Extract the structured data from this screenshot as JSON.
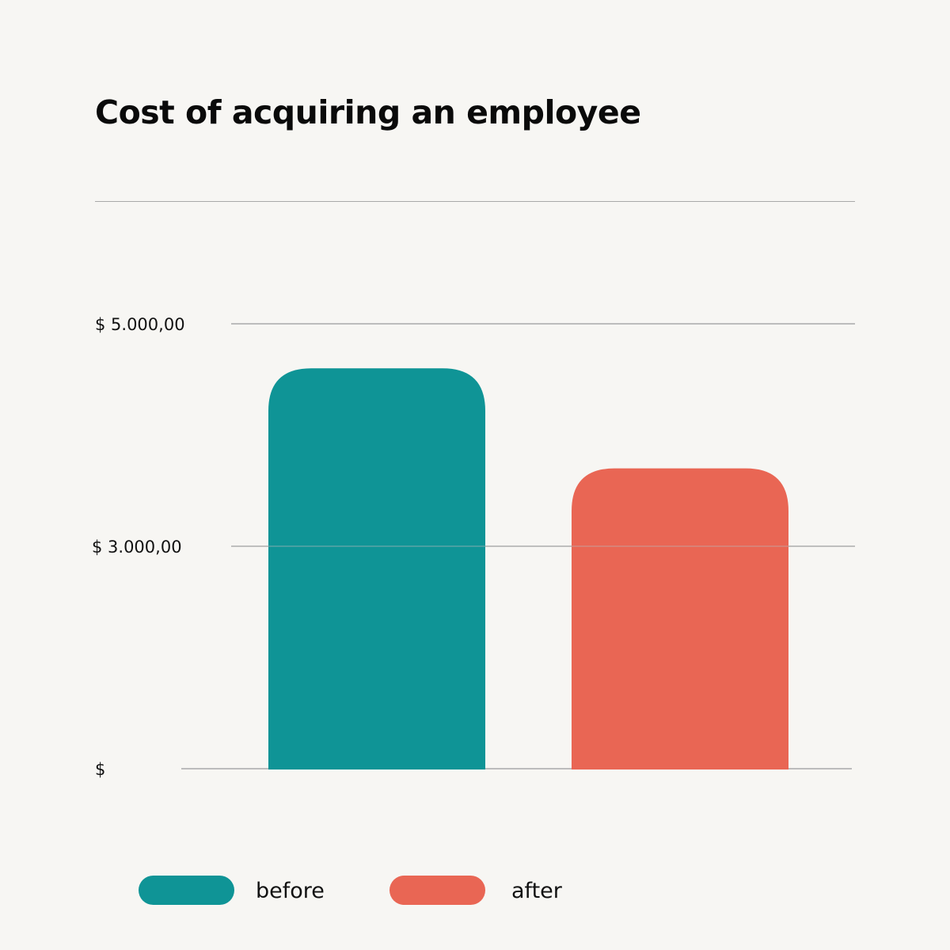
{
  "chart_data": {
    "type": "bar",
    "title": "Cost of acquiring an employee",
    "categories": [
      "before",
      "after"
    ],
    "values": [
      4600,
      3700
    ],
    "colors": [
      "#0f9496",
      "#e96654"
    ],
    "ylim": [
      1000,
      5000
    ],
    "y_ticks": [
      {
        "value": 5000,
        "label": "$ 5.000,00"
      },
      {
        "value": 3000,
        "label": "$ 3.000,00"
      },
      {
        "value": 1000,
        "label": "$"
      }
    ],
    "grid": true,
    "legend": {
      "position": "bottom-left",
      "entries": [
        {
          "label": "before",
          "color": "#0f9496"
        },
        {
          "label": "after",
          "color": "#e96654"
        }
      ]
    },
    "xlabel": "",
    "ylabel": ""
  }
}
